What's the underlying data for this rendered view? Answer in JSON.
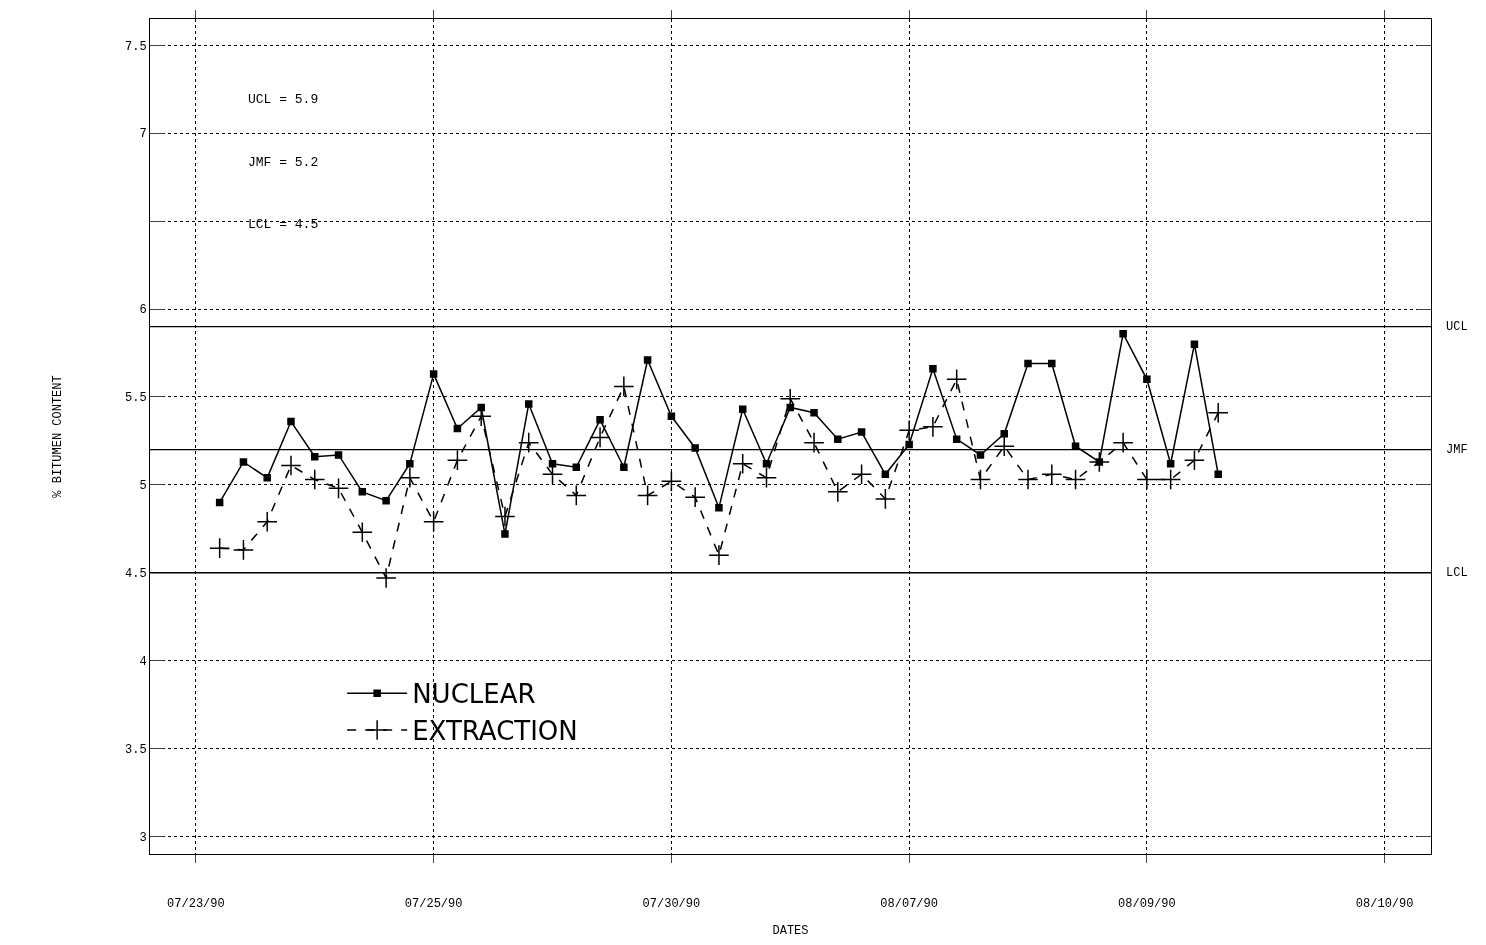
{
  "chart_data": {
    "type": "line",
    "xlabel": "DATES",
    "ylabel": "% BITUMEN CONTENT",
    "categories": [
      "07/23/90",
      null,
      null,
      null,
      null,
      null,
      null,
      null,
      null,
      null,
      "07/25/90",
      null,
      null,
      null,
      null,
      null,
      null,
      null,
      null,
      null,
      "07/30/90",
      null,
      null,
      null,
      null,
      null,
      null,
      null,
      null,
      null,
      "08/07/90",
      null,
      null,
      null,
      null,
      null,
      null,
      null,
      null,
      null,
      "08/09/90",
      null,
      null,
      null,
      null,
      null,
      null,
      null,
      null,
      null,
      "08/10/90"
    ],
    "series": [
      {
        "name": "NUCLEAR",
        "color": "#000000",
        "marker": "square",
        "line_style": "solid",
        "values": [
          null,
          4.9,
          5.13,
          5.04,
          5.36,
          5.16,
          5.17,
          4.96,
          4.91,
          5.12,
          5.63,
          5.32,
          5.44,
          4.72,
          5.46,
          5.12,
          5.1,
          5.37,
          5.1,
          5.71,
          5.39,
          5.21,
          4.87,
          5.43,
          5.12,
          5.44,
          5.41,
          5.26,
          5.3,
          5.06,
          5.23,
          5.66,
          5.26,
          5.17,
          5.29,
          5.69,
          5.69,
          5.22,
          5.13,
          5.86,
          5.6,
          5.12,
          5.8,
          5.06,
          null,
          null,
          null,
          null,
          null,
          null,
          null
        ]
      },
      {
        "name": "EXTRACTION",
        "color": "#000000",
        "marker": "cross",
        "line_style": "dashed",
        "values": [
          null,
          4.64,
          4.63,
          4.79,
          5.11,
          5.03,
          4.98,
          4.73,
          4.47,
          5.04,
          4.79,
          5.14,
          5.39,
          4.82,
          5.24,
          5.06,
          4.94,
          5.27,
          5.56,
          4.94,
          5.02,
          4.93,
          4.6,
          5.12,
          5.04,
          5.49,
          5.24,
          4.96,
          5.06,
          4.92,
          5.31,
          5.33,
          5.6,
          5.03,
          5.22,
          5.03,
          5.06,
          5.03,
          5.13,
          5.24,
          5.03,
          5.03,
          5.14,
          5.41,
          null,
          null,
          null,
          null,
          null,
          null,
          null
        ]
      }
    ],
    "ylim": [
      2.9,
      7.65
    ],
    "yticks": [
      3,
      3.5,
      4,
      4.5,
      5,
      5.5,
      6,
      {
        "value": 6.5,
        "label": null
      },
      7,
      7.5
    ],
    "grid": true,
    "legend": "bottom left",
    "ref_lines": [
      {
        "axis": "y",
        "value": 5.9,
        "label": "UCL",
        "color": "#000000"
      },
      {
        "axis": "y",
        "value": 5.2,
        "label": "JMF",
        "color": "#000000"
      },
      {
        "axis": "y",
        "value": 4.5,
        "label": "LCL",
        "color": "#000000"
      }
    ],
    "annotations": [
      "UCL = 5.9",
      "JMF = 5.2",
      "LCL = 4.5"
    ]
  }
}
